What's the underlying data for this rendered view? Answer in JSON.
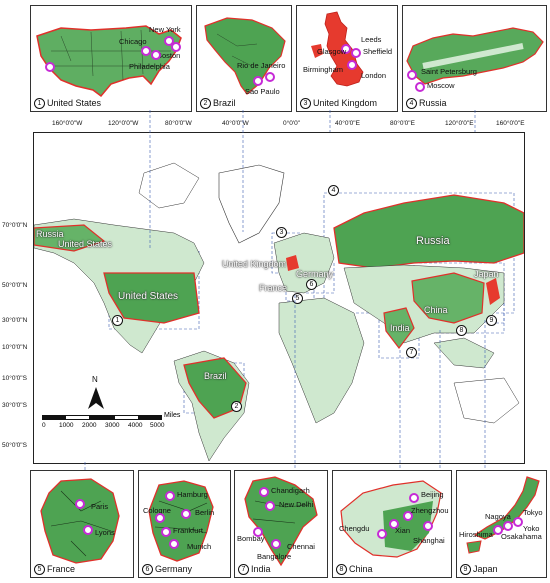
{
  "top_panels": [
    {
      "id": "us",
      "number": "1",
      "title": "United States",
      "cities": [
        "New York",
        "Chicago",
        "Boston",
        "Philadelphia"
      ]
    },
    {
      "id": "brazil",
      "number": "2",
      "title": "Brazil",
      "cities": [
        "Rio de Janeiro",
        "Sao Paulo"
      ]
    },
    {
      "id": "uk",
      "number": "3",
      "title": "United Kingdom",
      "cities": [
        "Leeds",
        "Glasgow",
        "Sheffield",
        "Birmingham",
        "London"
      ]
    },
    {
      "id": "russia",
      "number": "4",
      "title": "Russia",
      "cities": [
        "Saint Petersburg",
        "Moscow"
      ]
    }
  ],
  "bottom_panels": [
    {
      "id": "france",
      "number": "5",
      "title": "France",
      "cities": [
        "Paris",
        "Lyons"
      ]
    },
    {
      "id": "germany",
      "number": "6",
      "title": "Germany",
      "cities": [
        "Hamburg",
        "Cologne",
        "Berlin",
        "Frankfurt",
        "Munich"
      ]
    },
    {
      "id": "india",
      "number": "7",
      "title": "India",
      "cities": [
        "Chandigarh",
        "New Delhi",
        "Bombay",
        "Chennai",
        "Bangalore"
      ]
    },
    {
      "id": "china",
      "number": "8",
      "title": "China",
      "cities": [
        "Beijing",
        "Zhengzhou",
        "Chengdu",
        "Xian",
        "Shanghai"
      ]
    },
    {
      "id": "japan",
      "number": "9",
      "title": "Japan",
      "cities": [
        "Tokyo",
        "Nagoya",
        "Yoko",
        "hama",
        "Hiroshima",
        "Osaka"
      ]
    }
  ],
  "longitude_labels": [
    "160°0'0\"W",
    "120°0'0\"W",
    "80°0'0\"W",
    "40°0'0\"W",
    "0°0'0\"",
    "40°0'0\"E",
    "80°0'0\"E",
    "120°0'0\"E",
    "160°0'0\"E"
  ],
  "latitude_labels": [
    "70°0'0\"N",
    "50°0'0\"N",
    "30°0'0\"N",
    "10°0'0\"N",
    "10°0'0\"S",
    "30°0'0\"S",
    "50°0'0\"S"
  ],
  "map_labels": {
    "russia_west": "Russia",
    "us_alaska": "United States",
    "russia_main": "Russia",
    "united_kingdom": "United Kingdom",
    "germany": "Germany",
    "france": "France",
    "united_states": "United States",
    "china": "China",
    "india": "India",
    "japan": "Japan",
    "brazil": "Brazil"
  },
  "map_region_numbers": [
    "1",
    "2",
    "3",
    "4",
    "5",
    "6",
    "7",
    "8",
    "9"
  ],
  "north_arrow": "N",
  "scale_bar": {
    "ticks": [
      "0",
      "1000",
      "2000",
      "3000",
      "4000",
      "5000"
    ],
    "unit": "Miles"
  },
  "colors": {
    "land_green": "#3d9a4a",
    "pale_green": "#cfe8cf",
    "boundary_red": "#e0302a",
    "city_marker": "#c62ad6",
    "dashed_line": "#3a5bb0"
  }
}
